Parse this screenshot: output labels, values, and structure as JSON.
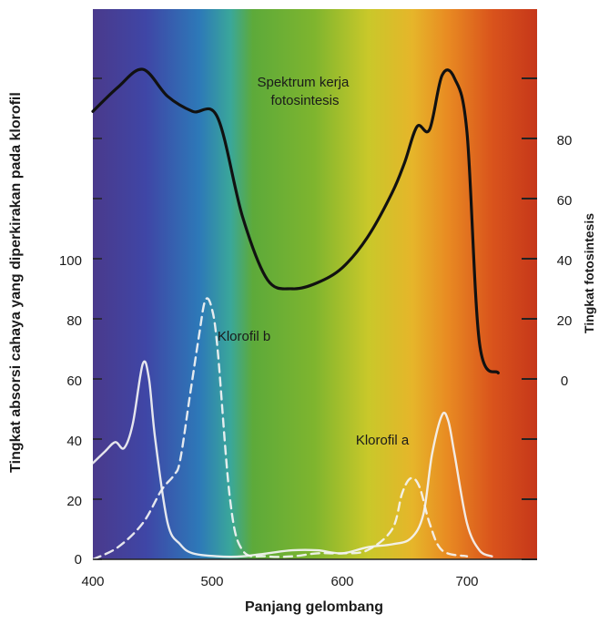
{
  "chart_data": {
    "type": "line",
    "xlabel": "Panjang gelombang",
    "ylabel_left": "Tingkat absorsi cahaya yang diperkirakan pada klorofil",
    "ylabel_right": "Tingkat fotosintesis",
    "xlim": [
      400,
      750
    ],
    "ylim_left": [
      0,
      180
    ],
    "ylim_right": [
      -40,
      120
    ],
    "x_ticks": [
      "400",
      "500",
      "600",
      "700"
    ],
    "y_ticks_left": [
      "0",
      "20",
      "40",
      "60",
      "80",
      "100"
    ],
    "y_ticks_right": [
      "0",
      "20",
      "40",
      "60",
      "80"
    ],
    "grid": false,
    "background": "visible light spectrum gradient (violet to red)",
    "annotations": [
      "Spektrum kerja\nfotosintesis",
      "Klorofil b",
      "Klorofil a"
    ],
    "series": [
      {
        "name": "Spektrum kerja fotosintesis",
        "axis": "right",
        "color": "#111111",
        "style": "solid",
        "x": [
          400,
          420,
          440,
          460,
          480,
          500,
          520,
          540,
          560,
          580,
          600,
          620,
          640,
          650,
          660,
          670,
          680,
          690,
          700,
          710,
          725
        ],
        "y": [
          89,
          97,
          103,
          94,
          89,
          87,
          54,
          33,
          30,
          32,
          37,
          47,
          62,
          72,
          84,
          83,
          101,
          100,
          82,
          12,
          2
        ]
      },
      {
        "name": "Klorofil a",
        "axis": "left",
        "color": "#f4f4f4",
        "style": "solid",
        "x": [
          400,
          410,
          418,
          425,
          432,
          440,
          445,
          450,
          460,
          470,
          480,
          500,
          520,
          540,
          560,
          580,
          600,
          620,
          640,
          655,
          665,
          672,
          680,
          685,
          690,
          700,
          710,
          720
        ],
        "y": [
          32,
          36,
          39,
          37,
          45,
          65,
          60,
          40,
          12,
          5,
          2,
          1,
          1,
          2,
          3,
          3,
          2,
          4,
          5,
          7,
          15,
          35,
          48,
          46,
          35,
          12,
          3,
          1
        ]
      },
      {
        "name": "Klorofil b",
        "axis": "left",
        "color": "#f4f4f4",
        "style": "dashed",
        "x": [
          400,
          420,
          440,
          455,
          465,
          470,
          478,
          485,
          490,
          495,
          500,
          510,
          520,
          540,
          560,
          580,
          600,
          620,
          640,
          648,
          655,
          662,
          670,
          680,
          700
        ],
        "y": [
          0,
          4,
          12,
          23,
          28,
          33,
          55,
          74,
          86,
          84,
          70,
          20,
          3,
          1,
          1,
          2,
          2,
          3,
          10,
          22,
          27,
          24,
          12,
          3,
          1
        ]
      }
    ]
  }
}
